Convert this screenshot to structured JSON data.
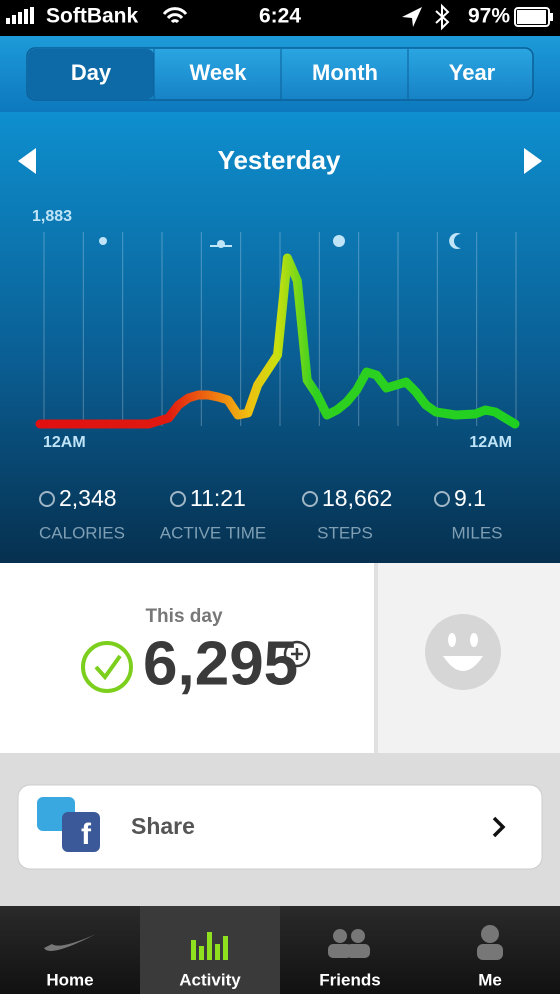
{
  "status_bar": {
    "carrier": "SoftBank",
    "time": "6:24",
    "battery": "97%"
  },
  "tabs": [
    "Day",
    "Week",
    "Month",
    "Year"
  ],
  "period": "Yesterday",
  "chart": {
    "type": "line",
    "x": [
      0,
      5.5,
      6,
      6.5,
      7,
      7.5,
      8,
      8.5,
      9,
      9.5,
      10,
      10.5,
      11,
      11.5,
      12,
      12.5,
      13,
      13.5,
      14,
      14.5,
      15,
      15.5,
      16,
      16.5,
      17,
      17.5,
      18,
      18.5,
      19,
      19.5,
      20,
      21,
      22,
      22.5,
      23,
      24
    ],
    "values": [
      38,
      38,
      67,
      95,
      219,
      285,
      314,
      314,
      295,
      266,
      124,
      143,
      409,
      552,
      694,
      1617,
      1400,
      456,
      314,
      124,
      171,
      247,
      361,
      533,
      504,
      380,
      409,
      437,
      342,
      219,
      152,
      124,
      133,
      171,
      152,
      38
    ],
    "xlim": [
      0,
      24
    ],
    "ylim": [
      0,
      1883
    ],
    "yticks": [
      {
        "value": 1883,
        "label": "1,883"
      }
    ],
    "xticks": [
      {
        "value": 0,
        "label": "12AM"
      },
      {
        "value": 24,
        "label": "12AM"
      }
    ]
  },
  "stats": [
    {
      "value": "2,348",
      "label": "CALORIES"
    },
    {
      "value": "11:21",
      "label": "ACTIVE TIME"
    },
    {
      "value": "18,662",
      "label": "STEPS"
    },
    {
      "value": "9.1",
      "label": "MILES"
    }
  ],
  "fuel": {
    "caption": "This day",
    "value": "6,295"
  },
  "share": "Share",
  "tab_bar": [
    "Home",
    "Activity",
    "Friends",
    "Me"
  ]
}
